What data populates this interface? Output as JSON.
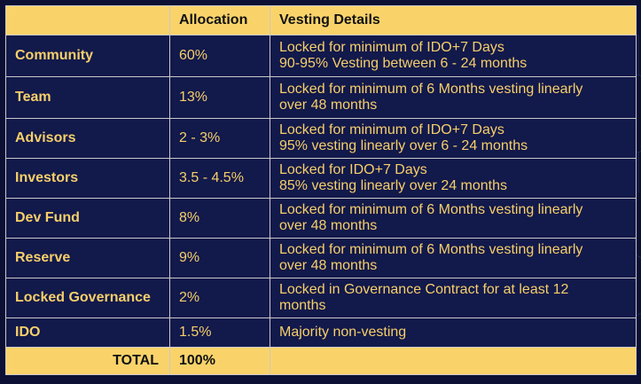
{
  "header": {
    "category": "",
    "allocation": "Allocation",
    "vesting": "Vesting Details"
  },
  "rows": [
    {
      "category": "Community",
      "allocation": "60%",
      "vesting": [
        "Locked for minimum of IDO+7 Days",
        "90-95% Vesting between 6 - 24 months"
      ]
    },
    {
      "category": "Team",
      "allocation": "13%",
      "vesting": [
        "Locked for minimum of 6 Months vesting linearly",
        "over 48 months"
      ]
    },
    {
      "category": "Advisors",
      "allocation": "2 - 3%",
      "vesting": [
        "Locked for minimum of IDO+7 Days",
        "95% vesting linearly over 6 - 24 months"
      ]
    },
    {
      "category": "Investors",
      "allocation": "3.5 - 4.5%",
      "vesting": [
        "Locked for IDO+7 Days",
        "85%  vesting linearly over 24 months"
      ]
    },
    {
      "category": "Dev Fund",
      "allocation": "8%",
      "vesting": [
        "Locked for minimum of 6 Months vesting linearly",
        "over 48 months"
      ]
    },
    {
      "category": "Reserve",
      "allocation": "9%",
      "vesting": [
        "Locked for minimum of 6 Months vesting linearly",
        "over 48 months"
      ]
    },
    {
      "category": "Locked Governance",
      "allocation": "2%",
      "vesting": [
        "Locked in Governance Contract for at least 12",
        "months"
      ]
    },
    {
      "category": "IDO",
      "allocation": "1.5%",
      "vesting": [
        "Majority non-vesting"
      ]
    }
  ],
  "footer": {
    "total_label": "TOTAL",
    "total_value": "100%"
  },
  "colors": {
    "background": "#0b1034",
    "cell_background": "#12194b",
    "header_background": "#f9d36a",
    "text_gold": "#f6cf6a",
    "border": "#c9c9c9"
  }
}
